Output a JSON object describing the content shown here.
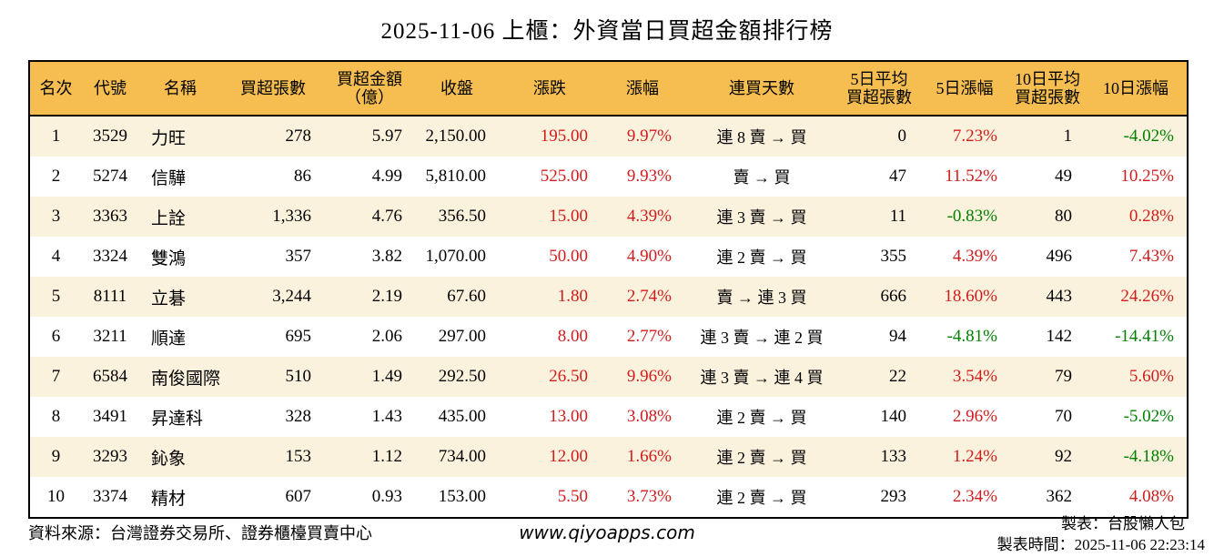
{
  "title": "2025-11-06 上櫃：外資當日買超金額排行榜",
  "colors": {
    "header_bg": "#f6be51",
    "stripe_bg": "#fbf2dd",
    "up_red": "#d21c1c",
    "down_green": "#008000"
  },
  "chart_data": {
    "type": "table",
    "title": "2025-11-06 上櫃：外資當日買超金額排行榜",
    "columns": [
      "名次",
      "代號",
      "名稱",
      "買超張數",
      "買超金額\n（億）",
      "收盤",
      "漲跌",
      "漲幅",
      "連買天數",
      "5日平均\n買超張數",
      "5日漲幅",
      "10日平均\n買超張數",
      "10日漲幅"
    ],
    "rows": [
      {
        "rank": "1",
        "code": "3529",
        "name": "力旺",
        "volume": "278",
        "amount": "5.97",
        "close": "2,150.00",
        "change": "195.00",
        "change_pct": "9.97%",
        "streak": "連 8 賣 → 買",
        "avg5": "0",
        "pct5": "7.23%",
        "avg10": "1",
        "pct10": "-4.02%"
      },
      {
        "rank": "2",
        "code": "5274",
        "name": "信驊",
        "volume": "86",
        "amount": "4.99",
        "close": "5,810.00",
        "change": "525.00",
        "change_pct": "9.93%",
        "streak": "賣 → 買",
        "avg5": "47",
        "pct5": "11.52%",
        "avg10": "49",
        "pct10": "10.25%"
      },
      {
        "rank": "3",
        "code": "3363",
        "name": "上詮",
        "volume": "1,336",
        "amount": "4.76",
        "close": "356.50",
        "change": "15.00",
        "change_pct": "4.39%",
        "streak": "連 3 賣 → 買",
        "avg5": "11",
        "pct5": "-0.83%",
        "avg10": "80",
        "pct10": "0.28%"
      },
      {
        "rank": "4",
        "code": "3324",
        "name": "雙鴻",
        "volume": "357",
        "amount": "3.82",
        "close": "1,070.00",
        "change": "50.00",
        "change_pct": "4.90%",
        "streak": "連 2 賣 → 買",
        "avg5": "355",
        "pct5": "4.39%",
        "avg10": "496",
        "pct10": "7.43%"
      },
      {
        "rank": "5",
        "code": "8111",
        "name": "立碁",
        "volume": "3,244",
        "amount": "2.19",
        "close": "67.60",
        "change": "1.80",
        "change_pct": "2.74%",
        "streak": "賣 → 連 3 買",
        "avg5": "666",
        "pct5": "18.60%",
        "avg10": "443",
        "pct10": "24.26%"
      },
      {
        "rank": "6",
        "code": "3211",
        "name": "順達",
        "volume": "695",
        "amount": "2.06",
        "close": "297.00",
        "change": "8.00",
        "change_pct": "2.77%",
        "streak": "連 3 賣 → 連 2 買",
        "avg5": "94",
        "pct5": "-4.81%",
        "avg10": "142",
        "pct10": "-14.41%"
      },
      {
        "rank": "7",
        "code": "6584",
        "name": "南俊國際",
        "volume": "510",
        "amount": "1.49",
        "close": "292.50",
        "change": "26.50",
        "change_pct": "9.96%",
        "streak": "連 3 賣 → 連 4 買",
        "avg5": "22",
        "pct5": "3.54%",
        "avg10": "79",
        "pct10": "5.60%"
      },
      {
        "rank": "8",
        "code": "3491",
        "name": "昇達科",
        "volume": "328",
        "amount": "1.43",
        "close": "435.00",
        "change": "13.00",
        "change_pct": "3.08%",
        "streak": "連 2 賣 → 買",
        "avg5": "140",
        "pct5": "2.96%",
        "avg10": "70",
        "pct10": "-5.02%"
      },
      {
        "rank": "9",
        "code": "3293",
        "name": "鈊象",
        "volume": "153",
        "amount": "1.12",
        "close": "734.00",
        "change": "12.00",
        "change_pct": "1.66%",
        "streak": "連 2 賣 → 買",
        "avg5": "133",
        "pct5": "1.24%",
        "avg10": "92",
        "pct10": "-4.18%"
      },
      {
        "rank": "10",
        "code": "3374",
        "name": "精材",
        "volume": "607",
        "amount": "0.93",
        "close": "153.00",
        "change": "5.50",
        "change_pct": "3.73%",
        "streak": "連 2 賣 → 買",
        "avg5": "293",
        "pct5": "2.34%",
        "avg10": "362",
        "pct10": "4.08%"
      }
    ]
  },
  "footer": {
    "source": "資料來源：台灣證券交易所、證券櫃檯買賣中心",
    "website": "www.qiyoapps.com",
    "maker": "製表：台股懶人包",
    "timestamp": "製表時間：2025-11-06 22:23:14"
  }
}
